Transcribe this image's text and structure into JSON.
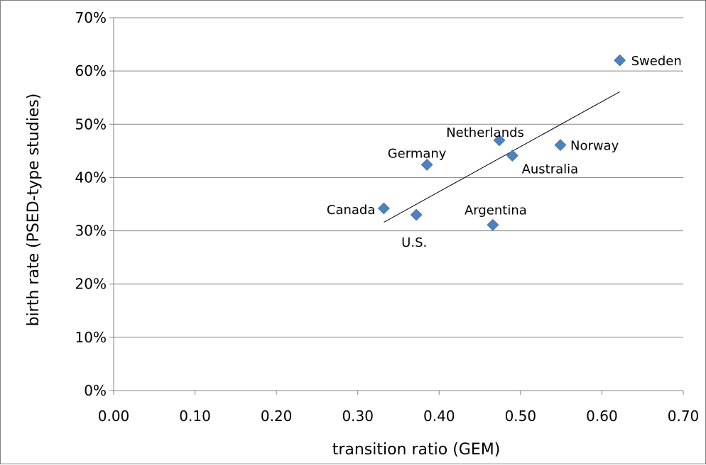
{
  "chart_data": {
    "type": "scatter",
    "title": "",
    "xlabel": "transition ratio (GEM)",
    "ylabel": "birth rate (PSED-type studies)",
    "xlim": [
      0,
      0.7
    ],
    "ylim": [
      0,
      0.7
    ],
    "x_ticks": [
      "0.00",
      "0.10",
      "0.20",
      "0.30",
      "0.40",
      "0.50",
      "0.60",
      "0.70"
    ],
    "y_ticks": [
      "0%",
      "10%",
      "20%",
      "30%",
      "40%",
      "50%",
      "60%",
      "70%"
    ],
    "grid": "horizontal",
    "legend": "none",
    "marker": "diamond",
    "marker_color": "#4F81BD",
    "points": [
      {
        "label": "Canada",
        "x": 0.332,
        "y": 0.342
      },
      {
        "label": "U.S.",
        "x": 0.372,
        "y": 0.33
      },
      {
        "label": "Germany",
        "x": 0.385,
        "y": 0.424
      },
      {
        "label": "Argentina",
        "x": 0.466,
        "y": 0.311
      },
      {
        "label": "Netherlands",
        "x": 0.474,
        "y": 0.47
      },
      {
        "label": "Australia",
        "x": 0.49,
        "y": 0.441
      },
      {
        "label": "Norway",
        "x": 0.549,
        "y": 0.461
      },
      {
        "label": "Sweden",
        "x": 0.622,
        "y": 0.62
      }
    ],
    "trendline": {
      "x": [
        0.332,
        0.622
      ],
      "y": [
        0.316,
        0.561
      ],
      "color": "#000000"
    }
  }
}
